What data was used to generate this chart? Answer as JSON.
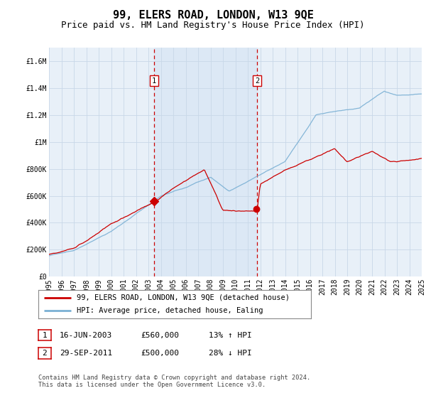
{
  "title": "99, ELERS ROAD, LONDON, W13 9QE",
  "subtitle": "Price paid vs. HM Land Registry's House Price Index (HPI)",
  "background_color": "#ffffff",
  "plot_bg_color": "#e8f0f8",
  "grid_color": "#c8d8e8",
  "ylim": [
    0,
    1700000
  ],
  "yticks": [
    0,
    200000,
    400000,
    600000,
    800000,
    1000000,
    1200000,
    1400000,
    1600000
  ],
  "ytick_labels": [
    "£0",
    "£200K",
    "£400K",
    "£600K",
    "£800K",
    "£1M",
    "£1.2M",
    "£1.4M",
    "£1.6M"
  ],
  "x_start_year": 1995,
  "x_end_year": 2025,
  "sale1_date": 2003.46,
  "sale1_price": 560000,
  "sale1_label": "1",
  "sale2_date": 2011.75,
  "sale2_price": 500000,
  "sale2_label": "2",
  "red_line_color": "#cc0000",
  "blue_line_color": "#7ab0d4",
  "annotation_box_color": "#cc0000",
  "shaded_region_color": "#dce8f5",
  "legend1": "99, ELERS ROAD, LONDON, W13 9QE (detached house)",
  "legend2": "HPI: Average price, detached house, Ealing",
  "sale1_info_col1": "16-JUN-2003",
  "sale1_info_col2": "£560,000",
  "sale1_info_col3": "13% ↑ HPI",
  "sale2_info_col1": "29-SEP-2011",
  "sale2_info_col2": "£500,000",
  "sale2_info_col3": "28% ↓ HPI",
  "footnote": "Contains HM Land Registry data © Crown copyright and database right 2024.\nThis data is licensed under the Open Government Licence v3.0.",
  "title_fontsize": 11,
  "subtitle_fontsize": 9,
  "axis_fontsize": 7
}
